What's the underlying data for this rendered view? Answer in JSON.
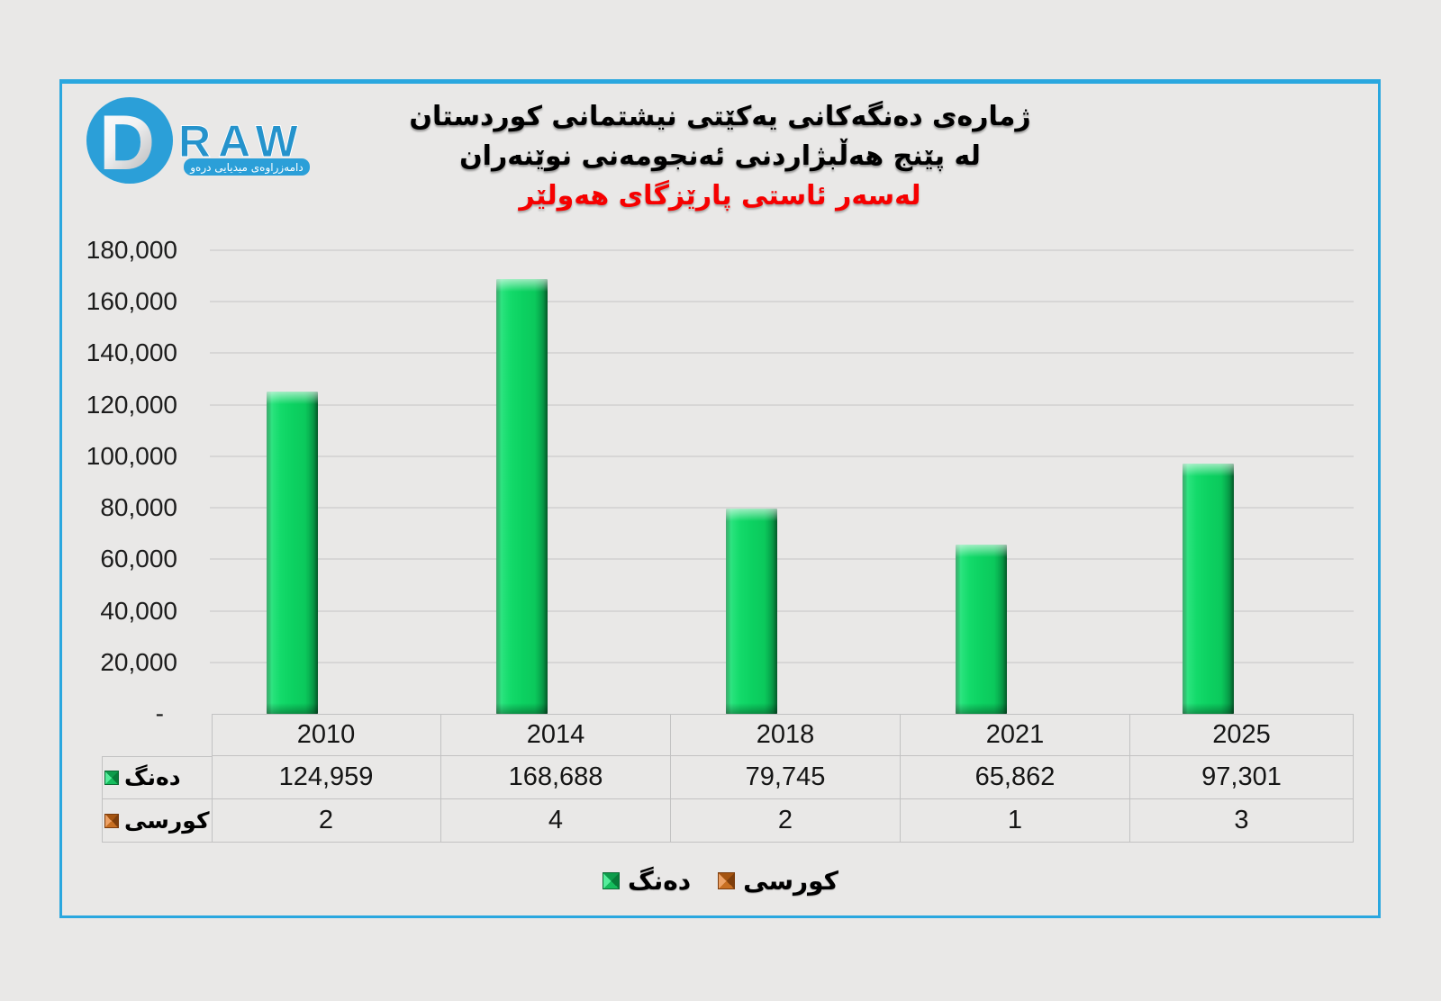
{
  "logo": {
    "d": "D",
    "raw": "RAW",
    "tagline": "دامەزراوەی میدیایی درەو",
    "blue": "#2b9fd8"
  },
  "title": {
    "line1": "ژمارەی دەنگەکانی یەکێتی نیشتمانی کوردستان",
    "line2": "لە پێنج هەڵبژاردنی ئەنجومەنی نوێنەران",
    "line3": "لەسەر ئاستی پارێزگای هەولێر",
    "line3_color": "#f60000"
  },
  "colors": {
    "panel_border": "#2aa7df",
    "bar_green": "#0cd161",
    "seat_orange": "#c86f22",
    "background": "#e9e8e7",
    "gridline": "#d7d6d6"
  },
  "chart_data": {
    "type": "bar",
    "title": "ژمارەی دەنگەکانی یەکێتی نیشتمانی کوردستان لە پێنج هەڵبژاردنی ئەنجومەنی نوێنەران لەسەر ئاستی پارێزگای هەولێر",
    "categories": [
      "2010",
      "2014",
      "2018",
      "2021",
      "2025"
    ],
    "series": [
      {
        "name": "دەنگ",
        "swatch": "green",
        "plotted_as_bars": true,
        "values": [
          124959,
          168688,
          79745,
          65862,
          97301
        ],
        "value_labels": [
          "124,959",
          "168,688",
          "79,745",
          "65,862",
          "97,301"
        ]
      },
      {
        "name": "کورسی",
        "swatch": "orange",
        "plotted_as_bars": false,
        "values": [
          2,
          4,
          2,
          1,
          3
        ],
        "value_labels": [
          "2",
          "4",
          "2",
          "1",
          "3"
        ]
      }
    ],
    "xlabel": "",
    "ylabel": "",
    "ylim": [
      0,
      180000
    ],
    "ytick_step": 20000,
    "ytick_labels": [
      "180,000",
      "160,000",
      "140,000",
      "120,000",
      "100,000",
      "80,000",
      "60,000",
      "40,000",
      "20,000",
      "-"
    ],
    "grid": true,
    "legend_position": "bottom",
    "data_table_shown": true
  }
}
